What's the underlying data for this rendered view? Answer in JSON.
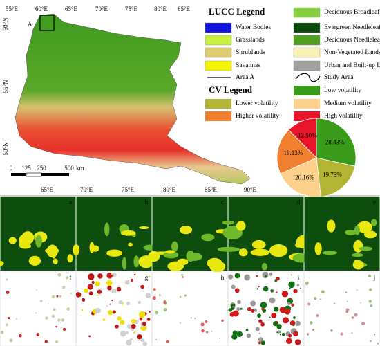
{
  "map": {
    "label": "A",
    "lon_top": [
      "55°E",
      "60°E",
      "65°E",
      "70°E",
      "75°E",
      "80°E",
      "85°E"
    ],
    "lat_left": [
      "60°N",
      "55°N",
      "50°N"
    ],
    "lon_bottom": [
      "65°E",
      "70°E",
      "75°E",
      "80°E",
      "85°E",
      "90°E"
    ],
    "scale": [
      "0",
      "125",
      "250",
      "500",
      "km"
    ]
  },
  "lucc_legend": {
    "title": "LUCC Legend",
    "items": [
      {
        "name": "Water Bodies",
        "color": "#1414e0"
      },
      {
        "name": "Grasslands",
        "color": "#c8f03c"
      },
      {
        "name": "Shrublands",
        "color": "#e0cc70"
      },
      {
        "name": "Savannas",
        "color": "#f5f500"
      },
      {
        "name": "Deciduous Broadleaf Forests",
        "color": "#88d040"
      },
      {
        "name": "Evergreen Needleleaf Forests",
        "color": "#0a4a0a"
      },
      {
        "name": "Deciduous Needleleaf Forests",
        "color": "#50a020"
      },
      {
        "name": "Non-Vegetated Lands",
        "color": "#f7f2b4"
      },
      {
        "name": "Urban and Built-up Lands",
        "color": "#a0a0a0"
      }
    ],
    "area_a": "Area A",
    "study_area": "Study Area"
  },
  "cv_legend": {
    "title": "CV Legend",
    "items": [
      {
        "name": "Low volatility",
        "color": "#3a9a1a"
      },
      {
        "name": "Lower volatility",
        "color": "#b4b434"
      },
      {
        "name": "Medium volatility",
        "color": "#fdd08c"
      },
      {
        "name": "Higher volatility",
        "color": "#f08030"
      },
      {
        "name": "High volatility",
        "color": "#e8152a"
      }
    ]
  },
  "pie": {
    "values": [
      28.43,
      19.78,
      20.16,
      19.13,
      12.5
    ],
    "value_labels": [
      "28.43%",
      "19.78%",
      "20.16%",
      "19.13%",
      "12.50%"
    ]
  },
  "panels": [
    "a",
    "b",
    "c",
    "d",
    "e",
    "f",
    "g",
    "h",
    "i",
    "j"
  ]
}
